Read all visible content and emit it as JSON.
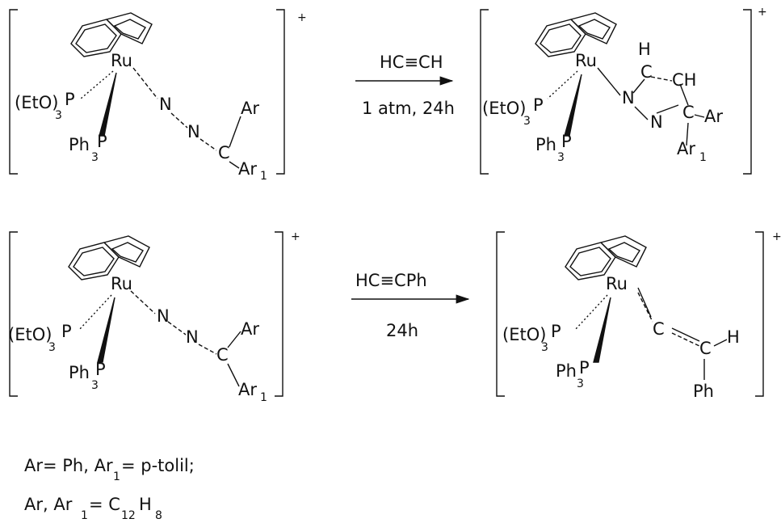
{
  "structures": [
    {
      "labels": [
        "+",
        "Ru",
        "(EtO)",
        "3",
        "P",
        "Ph",
        "3",
        "P",
        "N",
        "N",
        "C",
        "Ar",
        "Ar",
        "1"
      ]
    },
    {
      "labels": [
        "+",
        "Ru",
        "(EtO)",
        "3",
        "P",
        "Ph",
        "3",
        "P",
        "N",
        "H",
        "C",
        "CH",
        "N",
        "C",
        "Ar",
        "Ar",
        "1"
      ]
    },
    {
      "labels": [
        "+",
        "Ru",
        "(EtO)",
        "3",
        "P",
        "Ph",
        "3",
        "P",
        "N",
        "N",
        "C",
        "Ar",
        "Ar",
        "1"
      ]
    },
    {
      "labels": [
        "+",
        "Ru",
        "(EtO)",
        "3",
        "P",
        "Ph",
        "3",
        "P",
        "C",
        "C",
        "H",
        "Ph"
      ]
    }
  ],
  "reactions": [
    {
      "reagent": "HC≡CH",
      "conditions": "1 atm, 24h"
    },
    {
      "reagent": "HC≡CPh",
      "conditions": "24h"
    }
  ],
  "notes": [
    [
      "Ar= Ph, Ar",
      "1",
      "= p-tolil;"
    ],
    [
      "Ar, Ar",
      "1",
      "= C",
      "12",
      "H",
      "8"
    ]
  ]
}
